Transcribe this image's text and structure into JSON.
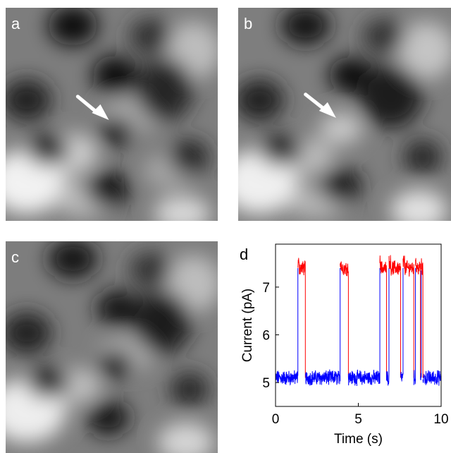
{
  "figure": {
    "panels": [
      {
        "label": "a",
        "has_arrow": true
      },
      {
        "label": "b",
        "has_arrow": true
      },
      {
        "label": "c",
        "has_arrow": false
      }
    ]
  },
  "chart_data": {
    "type": "line",
    "panel_label": "d",
    "xlabel": "Time (s)",
    "ylabel": "Current (pA)",
    "xlim": [
      0,
      10
    ],
    "ylim": [
      4.5,
      7.9
    ],
    "x_ticks": [
      0,
      5,
      10
    ],
    "y_ticks": [
      5,
      6,
      7
    ],
    "grid": false,
    "legend": "none",
    "colors": {
      "low_state": "#0000ff",
      "high_state": "#ff0000"
    },
    "series": [
      {
        "level": 5.1,
        "x": [
          0.0,
          1.35
        ]
      },
      {
        "level": 7.4,
        "x": [
          1.35,
          1.8
        ]
      },
      {
        "level": 5.1,
        "x": [
          1.8,
          3.9
        ]
      },
      {
        "level": 7.4,
        "x": [
          3.9,
          4.4
        ]
      },
      {
        "level": 5.1,
        "x": [
          4.4,
          6.3
        ]
      },
      {
        "level": 7.4,
        "x": [
          6.3,
          6.7
        ]
      },
      {
        "level": 5.1,
        "x": [
          6.7,
          6.85
        ]
      },
      {
        "level": 7.4,
        "x": [
          6.85,
          7.55
        ]
      },
      {
        "level": 5.1,
        "x": [
          7.55,
          7.7
        ]
      },
      {
        "level": 7.4,
        "x": [
          7.7,
          8.35
        ]
      },
      {
        "level": 5.1,
        "x": [
          8.35,
          8.45
        ]
      },
      {
        "level": 7.4,
        "x": [
          8.45,
          8.75
        ]
      },
      {
        "level": 5.1,
        "x": [
          8.75,
          8.8
        ]
      },
      {
        "level": 7.35,
        "x": [
          8.8,
          8.9
        ]
      },
      {
        "level": 5.1,
        "x": [
          8.9,
          10.0
        ]
      }
    ]
  }
}
